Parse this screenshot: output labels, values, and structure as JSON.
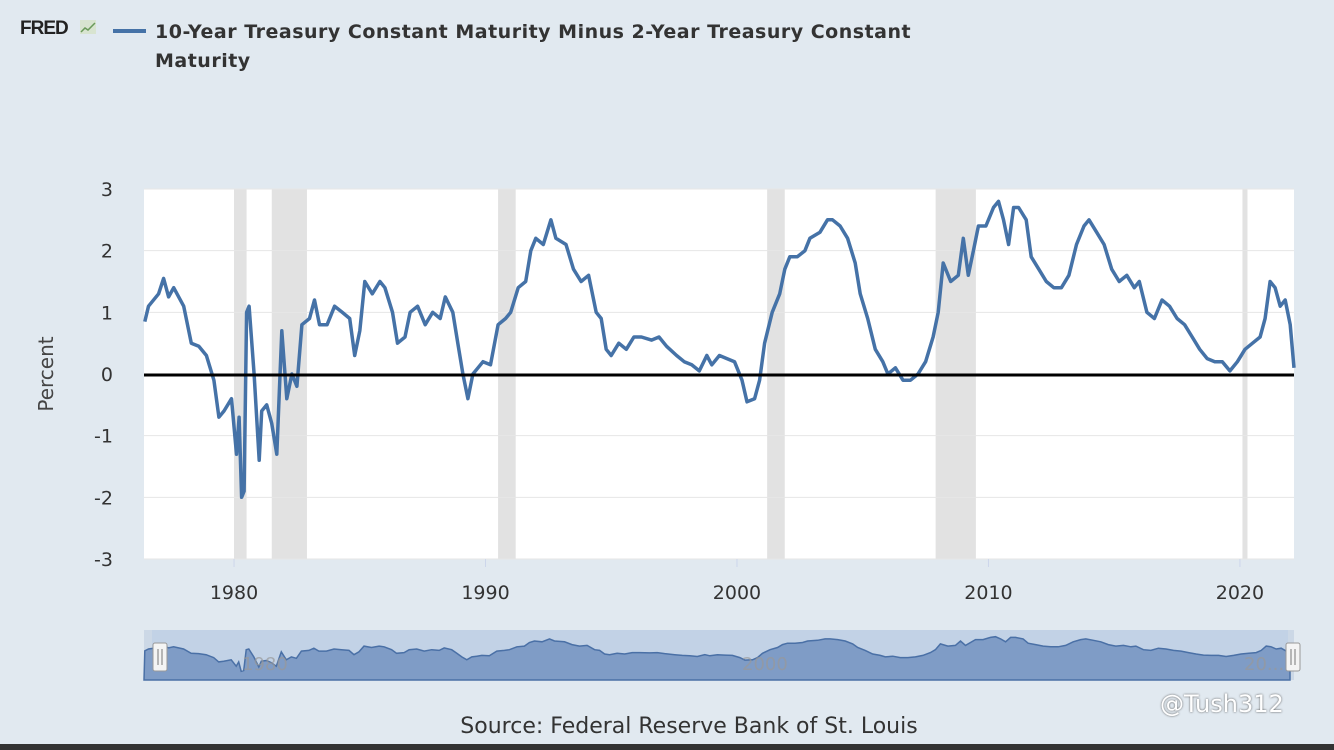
{
  "logo": "FRED",
  "legend": {
    "label": "10-Year Treasury Constant Maturity Minus 2-Year Treasury Constant Maturity",
    "color": "#4572a7"
  },
  "source": "Source: Federal Reserve Bank of St. Louis",
  "watermark": "@Tush312",
  "navigator": {
    "labels": [
      "1980",
      "2000",
      "20..."
    ]
  },
  "chart_data": {
    "type": "line",
    "title": "10-Year Treasury Constant Maturity Minus 2-Year Treasury Constant Maturity",
    "xlabel": "",
    "ylabel": "Percent",
    "xlim": [
      1976.42,
      2022.15
    ],
    "ylim": [
      -3,
      3
    ],
    "x_ticks": [
      "1980",
      "1990",
      "2000",
      "2010",
      "2020"
    ],
    "y_ticks": [
      "3",
      "2",
      "1",
      "0",
      "-1",
      "-2",
      "-3"
    ],
    "grid": true,
    "zero_line": true,
    "recessions": [
      [
        1980.0,
        1980.5
      ],
      [
        1981.5,
        1982.9
      ],
      [
        1990.5,
        1991.2
      ],
      [
        2001.2,
        2001.9
      ],
      [
        2007.9,
        2009.5
      ],
      [
        2020.1,
        2020.3
      ]
    ],
    "series": [
      {
        "name": "10-Year Treasury Constant Maturity Minus 2-Year Treasury Constant Maturity",
        "color": "#4572a7",
        "points": [
          [
            1976.45,
            0.85
          ],
          [
            1976.6,
            1.1
          ],
          [
            1977.0,
            1.3
          ],
          [
            1977.2,
            1.55
          ],
          [
            1977.4,
            1.25
          ],
          [
            1977.6,
            1.4
          ],
          [
            1978.0,
            1.1
          ],
          [
            1978.3,
            0.5
          ],
          [
            1978.6,
            0.45
          ],
          [
            1978.9,
            0.3
          ],
          [
            1979.2,
            -0.1
          ],
          [
            1979.4,
            -0.7
          ],
          [
            1979.6,
            -0.6
          ],
          [
            1979.9,
            -0.4
          ],
          [
            1980.1,
            -1.3
          ],
          [
            1980.2,
            -0.7
          ],
          [
            1980.3,
            -2.0
          ],
          [
            1980.4,
            -1.9
          ],
          [
            1980.5,
            1.0
          ],
          [
            1980.6,
            1.1
          ],
          [
            1980.8,
            0.0
          ],
          [
            1981.0,
            -1.4
          ],
          [
            1981.1,
            -0.6
          ],
          [
            1981.3,
            -0.5
          ],
          [
            1981.5,
            -0.8
          ],
          [
            1981.7,
            -1.3
          ],
          [
            1981.9,
            0.7
          ],
          [
            1982.1,
            -0.4
          ],
          [
            1982.3,
            0.0
          ],
          [
            1982.5,
            -0.2
          ],
          [
            1982.7,
            0.8
          ],
          [
            1983.0,
            0.9
          ],
          [
            1983.2,
            1.2
          ],
          [
            1983.4,
            0.8
          ],
          [
            1983.7,
            0.8
          ],
          [
            1984.0,
            1.1
          ],
          [
            1984.3,
            1.0
          ],
          [
            1984.6,
            0.9
          ],
          [
            1984.8,
            0.3
          ],
          [
            1985.0,
            0.7
          ],
          [
            1985.2,
            1.5
          ],
          [
            1985.5,
            1.3
          ],
          [
            1985.8,
            1.5
          ],
          [
            1986.0,
            1.4
          ],
          [
            1986.3,
            1.0
          ],
          [
            1986.5,
            0.5
          ],
          [
            1986.8,
            0.6
          ],
          [
            1987.0,
            1.0
          ],
          [
            1987.3,
            1.1
          ],
          [
            1987.6,
            0.8
          ],
          [
            1987.9,
            1.0
          ],
          [
            1988.2,
            0.9
          ],
          [
            1988.4,
            1.25
          ],
          [
            1988.7,
            1.0
          ],
          [
            1988.9,
            0.5
          ],
          [
            1989.1,
            0.0
          ],
          [
            1989.3,
            -0.4
          ],
          [
            1989.5,
            0.0
          ],
          [
            1989.7,
            0.1
          ],
          [
            1989.9,
            0.2
          ],
          [
            1990.2,
            0.15
          ],
          [
            1990.5,
            0.8
          ],
          [
            1990.8,
            0.9
          ],
          [
            1991.0,
            1.0
          ],
          [
            1991.3,
            1.4
          ],
          [
            1991.6,
            1.5
          ],
          [
            1991.8,
            2.0
          ],
          [
            1992.0,
            2.2
          ],
          [
            1992.3,
            2.1
          ],
          [
            1992.6,
            2.5
          ],
          [
            1992.8,
            2.2
          ],
          [
            1993.2,
            2.1
          ],
          [
            1993.5,
            1.7
          ],
          [
            1993.8,
            1.5
          ],
          [
            1994.1,
            1.6
          ],
          [
            1994.4,
            1.0
          ],
          [
            1994.6,
            0.9
          ],
          [
            1994.8,
            0.4
          ],
          [
            1995.0,
            0.3
          ],
          [
            1995.3,
            0.5
          ],
          [
            1995.6,
            0.4
          ],
          [
            1995.9,
            0.6
          ],
          [
            1996.2,
            0.6
          ],
          [
            1996.6,
            0.55
          ],
          [
            1996.9,
            0.6
          ],
          [
            1997.2,
            0.45
          ],
          [
            1997.6,
            0.3
          ],
          [
            1997.9,
            0.2
          ],
          [
            1998.2,
            0.15
          ],
          [
            1998.5,
            0.05
          ],
          [
            1998.8,
            0.3
          ],
          [
            1999.0,
            0.15
          ],
          [
            1999.3,
            0.3
          ],
          [
            1999.6,
            0.25
          ],
          [
            1999.9,
            0.2
          ],
          [
            2000.2,
            -0.1
          ],
          [
            2000.4,
            -0.45
          ],
          [
            2000.7,
            -0.4
          ],
          [
            2000.9,
            -0.1
          ],
          [
            2001.1,
            0.5
          ],
          [
            2001.4,
            1.0
          ],
          [
            2001.7,
            1.3
          ],
          [
            2001.9,
            1.7
          ],
          [
            2002.1,
            1.9
          ],
          [
            2002.4,
            1.9
          ],
          [
            2002.7,
            2.0
          ],
          [
            2002.9,
            2.2
          ],
          [
            2003.3,
            2.3
          ],
          [
            2003.6,
            2.5
          ],
          [
            2003.8,
            2.5
          ],
          [
            2004.1,
            2.4
          ],
          [
            2004.4,
            2.2
          ],
          [
            2004.7,
            1.8
          ],
          [
            2004.9,
            1.3
          ],
          [
            2005.2,
            0.9
          ],
          [
            2005.5,
            0.4
          ],
          [
            2005.8,
            0.2
          ],
          [
            2006.0,
            0.0
          ],
          [
            2006.3,
            0.1
          ],
          [
            2006.6,
            -0.1
          ],
          [
            2006.9,
            -0.1
          ],
          [
            2007.2,
            0.0
          ],
          [
            2007.5,
            0.2
          ],
          [
            2007.8,
            0.6
          ],
          [
            2008.0,
            1.0
          ],
          [
            2008.2,
            1.8
          ],
          [
            2008.5,
            1.5
          ],
          [
            2008.8,
            1.6
          ],
          [
            2009.0,
            2.2
          ],
          [
            2009.2,
            1.6
          ],
          [
            2009.4,
            2.0
          ],
          [
            2009.6,
            2.4
          ],
          [
            2009.9,
            2.4
          ],
          [
            2010.2,
            2.7
          ],
          [
            2010.4,
            2.8
          ],
          [
            2010.6,
            2.5
          ],
          [
            2010.8,
            2.1
          ],
          [
            2011.0,
            2.7
          ],
          [
            2011.2,
            2.7
          ],
          [
            2011.5,
            2.5
          ],
          [
            2011.7,
            1.9
          ],
          [
            2012.0,
            1.7
          ],
          [
            2012.3,
            1.5
          ],
          [
            2012.6,
            1.4
          ],
          [
            2012.9,
            1.4
          ],
          [
            2013.2,
            1.6
          ],
          [
            2013.5,
            2.1
          ],
          [
            2013.8,
            2.4
          ],
          [
            2014.0,
            2.5
          ],
          [
            2014.3,
            2.3
          ],
          [
            2014.6,
            2.1
          ],
          [
            2014.9,
            1.7
          ],
          [
            2015.2,
            1.5
          ],
          [
            2015.5,
            1.6
          ],
          [
            2015.8,
            1.4
          ],
          [
            2016.0,
            1.5
          ],
          [
            2016.3,
            1.0
          ],
          [
            2016.6,
            0.9
          ],
          [
            2016.9,
            1.2
          ],
          [
            2017.2,
            1.1
          ],
          [
            2017.5,
            0.9
          ],
          [
            2017.8,
            0.8
          ],
          [
            2018.1,
            0.6
          ],
          [
            2018.4,
            0.4
          ],
          [
            2018.7,
            0.25
          ],
          [
            2019.0,
            0.2
          ],
          [
            2019.3,
            0.2
          ],
          [
            2019.6,
            0.05
          ],
          [
            2019.9,
            0.2
          ],
          [
            2020.2,
            0.4
          ],
          [
            2020.5,
            0.5
          ],
          [
            2020.8,
            0.6
          ],
          [
            2021.0,
            0.9
          ],
          [
            2021.2,
            1.5
          ],
          [
            2021.4,
            1.4
          ],
          [
            2021.6,
            1.1
          ],
          [
            2021.8,
            1.2
          ],
          [
            2022.0,
            0.8
          ],
          [
            2022.15,
            0.1
          ]
        ]
      }
    ]
  }
}
